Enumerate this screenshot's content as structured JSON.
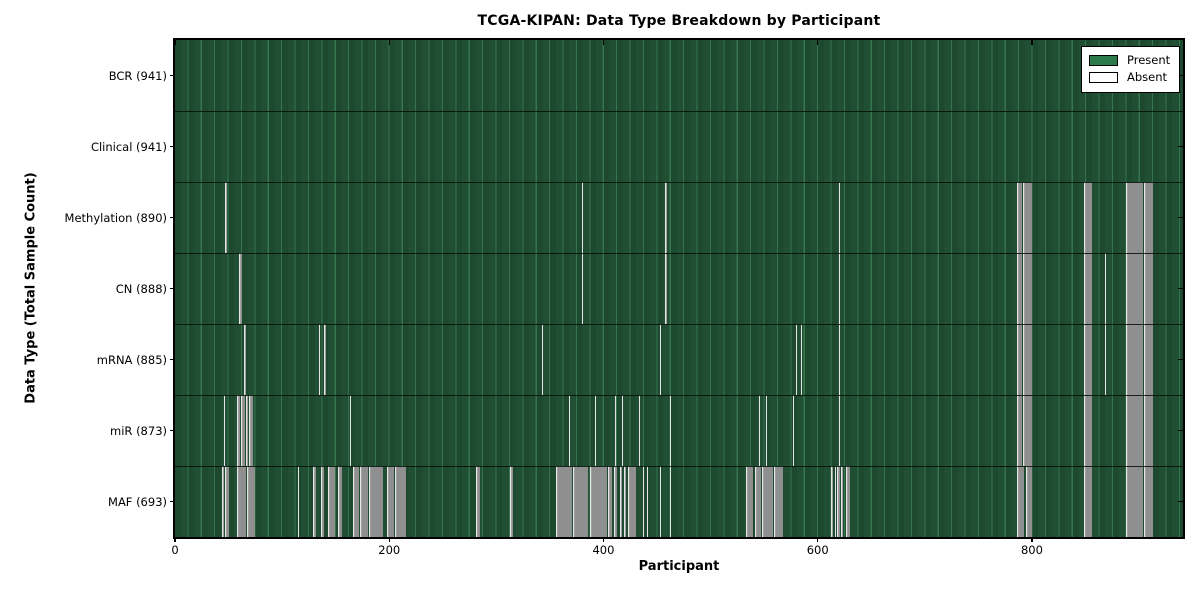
{
  "title": "TCGA-KIPAN: Data Type Breakdown by Participant",
  "xlabel": "Participant",
  "ylabel": "Data Type (Total Sample Count)",
  "legend": {
    "present_label": "Present",
    "absent_label": "Absent"
  },
  "colors": {
    "present_green": "#2c7a4c",
    "field_green_dark": "#1d4a2f",
    "field_grid_light": "#35744c",
    "absent_gray": "#8f8f8f",
    "absent_edge_white": "#e6e6e6",
    "axis_black": "#000000"
  },
  "chart_data": {
    "type": "heatmap",
    "title": "TCGA-KIPAN: Data Type Breakdown by Participant",
    "xlabel": "Participant",
    "ylabel": "Data Type (Total Sample Count)",
    "legend_entries": [
      "Present",
      "Absent"
    ],
    "legend_position": "upper right",
    "x_range": [
      0,
      941
    ],
    "x_ticks": [
      0,
      200,
      400,
      600,
      800
    ],
    "grid": false,
    "rows": [
      {
        "label": "BCR (941)",
        "present_count": 941,
        "absent_ranges": []
      },
      {
        "label": "Clinical (941)",
        "present_count": 941,
        "absent_ranges": []
      },
      {
        "label": "Methylation (890)",
        "present_count": 890,
        "absent_ranges": [
          [
            47,
            49
          ],
          [
            380,
            381
          ],
          [
            457,
            459
          ],
          [
            620,
            621
          ],
          [
            786,
            791
          ],
          [
            792,
            800
          ],
          [
            849,
            856
          ],
          [
            888,
            904
          ],
          [
            905,
            913
          ]
        ]
      },
      {
        "label": "CN (888)",
        "present_count": 888,
        "absent_ranges": [
          [
            60,
            63
          ],
          [
            380,
            381
          ],
          [
            457,
            459
          ],
          [
            620,
            621
          ],
          [
            786,
            791
          ],
          [
            792,
            800
          ],
          [
            849,
            856
          ],
          [
            868,
            869
          ],
          [
            888,
            904
          ],
          [
            905,
            913
          ]
        ]
      },
      {
        "label": "mRNA (885)",
        "present_count": 885,
        "absent_ranges": [
          [
            64,
            66
          ],
          [
            134,
            135
          ],
          [
            139,
            141
          ],
          [
            343,
            344
          ],
          [
            453,
            454
          ],
          [
            580,
            581
          ],
          [
            584,
            585
          ],
          [
            620,
            621
          ],
          [
            786,
            791
          ],
          [
            792,
            800
          ],
          [
            849,
            856
          ],
          [
            868,
            869
          ],
          [
            888,
            904
          ],
          [
            905,
            913
          ]
        ]
      },
      {
        "label": "miR (873)",
        "present_count": 873,
        "absent_ranges": [
          [
            46,
            47
          ],
          [
            58,
            61
          ],
          [
            62,
            65
          ],
          [
            66,
            68
          ],
          [
            69,
            73
          ],
          [
            163,
            164
          ],
          [
            368,
            369
          ],
          [
            392,
            393
          ],
          [
            411,
            412
          ],
          [
            417,
            418
          ],
          [
            433,
            434
          ],
          [
            462,
            463
          ],
          [
            545,
            546
          ],
          [
            552,
            553
          ],
          [
            577,
            578
          ],
          [
            620,
            621
          ],
          [
            786,
            791
          ],
          [
            792,
            800
          ],
          [
            849,
            856
          ],
          [
            888,
            904
          ],
          [
            905,
            913
          ]
        ]
      },
      {
        "label": "MAF (693)",
        "present_count": 693,
        "absent_ranges": [
          [
            44,
            46
          ],
          [
            47,
            50
          ],
          [
            58,
            66
          ],
          [
            67,
            75
          ],
          [
            115,
            116
          ],
          [
            129,
            132
          ],
          [
            136,
            139
          ],
          [
            143,
            149
          ],
          [
            152,
            156
          ],
          [
            166,
            172
          ],
          [
            173,
            180
          ],
          [
            181,
            194
          ],
          [
            198,
            204
          ],
          [
            205,
            216
          ],
          [
            281,
            285
          ],
          [
            313,
            316
          ],
          [
            356,
            371
          ],
          [
            372,
            386
          ],
          [
            387,
            403
          ],
          [
            404,
            408
          ],
          [
            410,
            413
          ],
          [
            415,
            417
          ],
          [
            419,
            421
          ],
          [
            423,
            430
          ],
          [
            437,
            438
          ],
          [
            441,
            442
          ],
          [
            453,
            454
          ],
          [
            462,
            463
          ],
          [
            533,
            540
          ],
          [
            541,
            547
          ],
          [
            548,
            558
          ],
          [
            559,
            568
          ],
          [
            612,
            614
          ],
          [
            616,
            617
          ],
          [
            618,
            621
          ],
          [
            622,
            624
          ],
          [
            626,
            630
          ],
          [
            786,
            793
          ],
          [
            794,
            800
          ],
          [
            849,
            856
          ],
          [
            888,
            904
          ],
          [
            905,
            913
          ]
        ]
      }
    ]
  }
}
